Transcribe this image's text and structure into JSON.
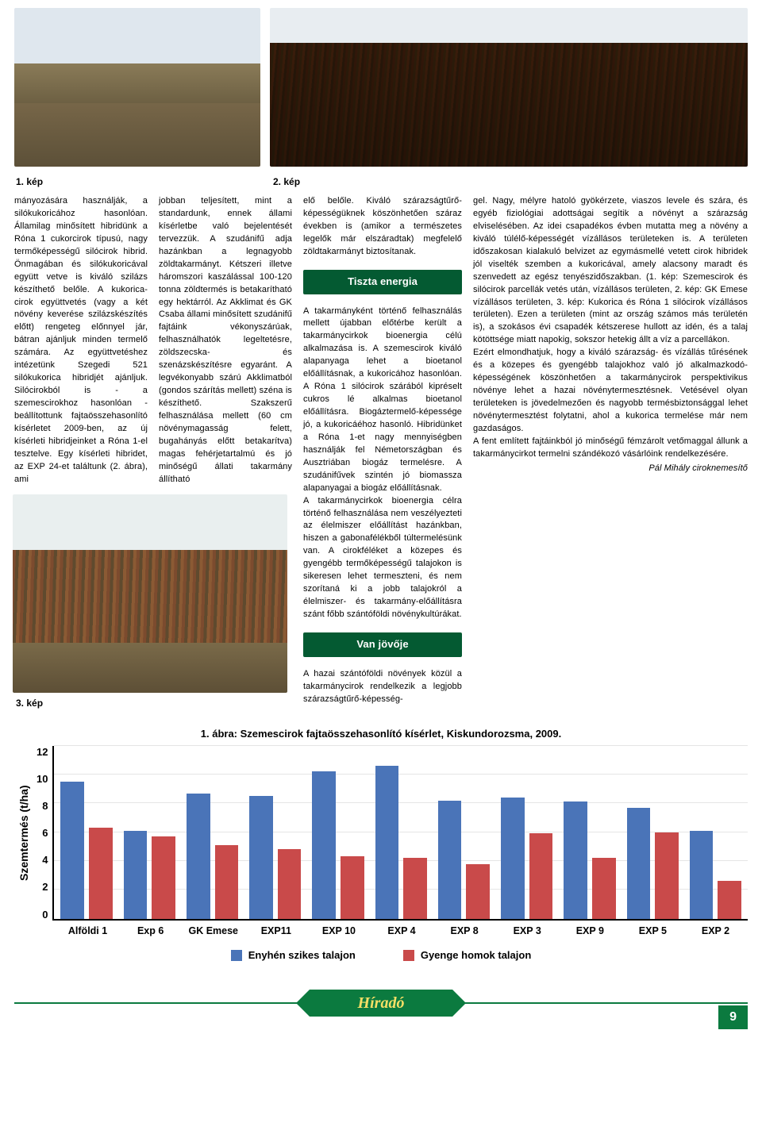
{
  "photos": {
    "cap1": "1. kép",
    "cap2": "2. kép",
    "cap3": "3. kép"
  },
  "article": {
    "col1": "mányozására használják, a silókukoricához hasonlóan. Államilag minősített hibridünk a Róna 1 cukorcirok típusú, nagy termőképességű silócirok hibrid. Önmagában és silókukoricával együtt vetve is kiváló szilázs készíthető belőle. A kukorica-cirok együttvetés (vagy a két növény keverése szilázskészítés előtt) rengeteg előnnyel jár, bátran ajánljuk minden termelő számára. Az együttvetéshez intézetünk Szegedi 521 silókukorica hibridjét ajánljuk. Silócirokból is - a szemescirokhoz hasonlóan - beállítottunk fajtaösszehasonlító kísérletet 2009-ben, az új kísérleti hibridjeinket a Róna 1-el tesztelve. Egy kísérleti hibridet, az EXP 24-et találtunk (2. ábra), ami",
    "col2": "jobban teljesített, mint a standardunk, ennek állami kísérletbe való bejelentését tervezzük.\n  A szudánifű adja hazánkban a legnagyobb zöldtakarmányt. Kétszeri illetve háromszori kaszálással 100-120 tonna zöldtermés is betakarítható egy hektárról. Az Akklimat és GK Csaba állami minősített szudánifű fajtáink vékonyszárúak, felhasználhatók legeltetésre, zöldszecska- és szenázskészítésre egyaránt. A legvékonyabb szárú Akklimatból (gondos szárítás mellett) széna is készíthető. Szakszerű felhasználása mellett (60 cm növénymagasság felett, bugahányás előtt betakarítva) magas fehérjetartalmú és jó minőségű állati takarmány állítható",
    "col3a": "elő belőle. Kiváló szárazságtűrő-képességüknek köszönhetően száraz években is (amikor a természetes legelők már elszáradtak) megfelelő zöldtakarmányt biztosítanak.",
    "col3_head1": "Tiszta energia",
    "col3b": "A takarmányként történő felhasználás mellett újabban előtérbe került a takarmánycirkok bioenergia célú alkalmazása is. A szemescirok kiváló alapanyaga lehet a bioetanol előállításnak, a kukoricához hasonlóan. A Róna 1 silócirok szárából kipréselt cukros lé alkalmas bioetanol előállításra. Biogáztermelő-képessége jó, a kukoricáéhoz hasonló. Hibridünket a Róna 1-et nagy mennyiségben használják fel Németországban és Ausztriában biogáz termelésre. A szudánifűvek szintén jó biomassza alapanyagai a biogáz előállításnak.\n  A takarmánycirkok bioenergia célra történő felhasználása nem veszélyezteti az élelmiszer előállítást hazánkban, hiszen a gabonafélékből túltermelésünk van. A cirokféléket a közepes és gyengébb termőképességű talajokon is sikeresen lehet termeszteni, és nem szorítaná ki a jobb talajokról a élelmiszer- és takarmány-előállításra szánt főbb szántóföldi növénykultúrákat.",
    "col3_head2": "Van jövője",
    "col3c": "A hazai szántóföldi növények közül a takarmánycirok rendelkezik a legjobb szárazságtűrő-képesség-",
    "col4": "gel. Nagy, mélyre hatoló gyökérzete, viaszos levele és szára, és egyéb fiziológiai adottságai segítik a növényt a szárazság elviselésében. Az idei csapadékos évben mutatta meg a növény a kiváló túlélő-képességét vízállásos területeken is. A területen időszakosan kialakuló belvizet az egymásmellé vetett cirok hibridek jól viselték szemben a kukoricával, amely alacsony maradt és szenvedett az egész tenyészidőszakban. (1. kép: Szemescirok és silócirok parcellák vetés után, vízállásos területen, 2. kép: GK Emese vízállásos területen, 3. kép: Kukorica és Róna 1 silócirok vízállásos területen). Ezen a területen (mint az ország számos más területén is), a szokásos évi csapadék kétszerese hullott az idén, és a talaj kötöttsége miatt napokig, sokszor hetekig állt a víz a parcellákon.\n  Ezért elmondhatjuk, hogy a kiváló szárazság- és vízállás tűrésének és a közepes és gyengébb talajokhoz való jó alkalmazkodó-képességének köszönhetően a takarmánycirok perspektivikus növénye lehet a hazai növénytermesztésnek. Vetésével olyan területeken is jövedelmezően és nagyobb termésbiztonsággal lehet növénytermesztést folytatni, ahol a kukorica termelése már nem gazdaságos.\n  A fent említett fajtáinkból jó minőségű fémzárolt vetőmaggal állunk a takarmánycirkot termelni szándékozó vásárlóink rendelkezésére.",
    "author": "Pál Mihály ciroknemesítő"
  },
  "chart": {
    "title": "1. ábra: Szemescirok fajtaösszehasonlító kísérlet, Kiskundorozsma, 2009.",
    "ylabel": "Szemtermés (t/ha)",
    "ymax": 12,
    "ystep": 2,
    "yticks": [
      "12",
      "10",
      "8",
      "6",
      "4",
      "2",
      "0"
    ],
    "categories": [
      "Alföldi 1",
      "Exp 6",
      "GK Emese",
      "EXP11",
      "EXP 10",
      "EXP 4",
      "EXP 8",
      "EXP 3",
      "EXP 9",
      "EXP 5",
      "EXP 2"
    ],
    "series": [
      {
        "name": "Enyhén szikes talajon",
        "color": "#4a74b8",
        "values": [
          9.5,
          6.1,
          8.7,
          8.5,
          10.2,
          10.6,
          8.2,
          8.4,
          8.1,
          7.7,
          6.1
        ]
      },
      {
        "name": "Gyenge homok talajon",
        "color": "#c94a4a",
        "values": [
          6.3,
          5.7,
          5.1,
          4.8,
          4.3,
          4.2,
          3.8,
          5.9,
          4.2,
          6.0,
          2.6
        ]
      }
    ],
    "legend": [
      "Enyhén szikes talajon",
      "Gyenge homok talajon"
    ]
  },
  "footer": {
    "brand": "Híradó",
    "page": "9"
  },
  "colors": {
    "brand_green": "#0b7a3f",
    "head_green": "#045a32",
    "bar_blue": "#4a74b8",
    "bar_red": "#c94a4a"
  }
}
